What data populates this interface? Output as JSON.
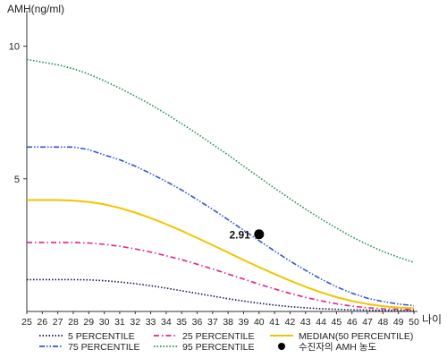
{
  "chart_data": {
    "type": "line",
    "ylabel": "AMH(ng/ml)",
    "xlabel": "나이",
    "x": [
      25,
      26,
      27,
      28,
      29,
      30,
      31,
      32,
      33,
      34,
      35,
      36,
      37,
      38,
      39,
      40,
      41,
      42,
      43,
      44,
      45,
      46,
      47,
      48,
      49,
      50
    ],
    "xlim": [
      25,
      50
    ],
    "ylim": [
      0,
      11
    ],
    "yticks": [
      5,
      10
    ],
    "grid": false,
    "legend_position": "bottom",
    "series": [
      {
        "name": "5 PERCENTILE",
        "color": "#0b1a4a",
        "dash": "dotted",
        "values": [
          1.2,
          1.2,
          1.2,
          1.2,
          1.19,
          1.16,
          1.11,
          1.05,
          0.97,
          0.88,
          0.78,
          0.68,
          0.58,
          0.48,
          0.39,
          0.31,
          0.24,
          0.18,
          0.14,
          0.1,
          0.08,
          0.06,
          0.05,
          0.04,
          0.03,
          0.03
        ]
      },
      {
        "name": "25 PERCENTILE",
        "color": "#e0218a",
        "dash": "dashdot",
        "values": [
          2.6,
          2.6,
          2.6,
          2.6,
          2.58,
          2.53,
          2.46,
          2.36,
          2.24,
          2.1,
          1.95,
          1.78,
          1.6,
          1.41,
          1.22,
          1.03,
          0.85,
          0.68,
          0.53,
          0.4,
          0.29,
          0.2,
          0.14,
          0.1,
          0.08,
          0.07
        ]
      },
      {
        "name": "MEDIAN(50 PERCENTILE)",
        "color": "#f2c400",
        "dash": "solid",
        "values": [
          4.2,
          4.2,
          4.2,
          4.18,
          4.13,
          4.04,
          3.9,
          3.73,
          3.52,
          3.29,
          3.04,
          2.77,
          2.5,
          2.22,
          1.94,
          1.67,
          1.41,
          1.16,
          0.93,
          0.72,
          0.54,
          0.39,
          0.28,
          0.2,
          0.15,
          0.12
        ]
      },
      {
        "name": "75 PERCENTILE",
        "color": "#3355cc",
        "dash": "dashdotdot",
        "values": [
          6.2,
          6.2,
          6.2,
          6.2,
          6.1,
          5.9,
          5.72,
          5.48,
          5.2,
          4.9,
          4.58,
          4.22,
          3.85,
          3.46,
          3.06,
          2.67,
          2.28,
          1.9,
          1.55,
          1.22,
          0.93,
          0.69,
          0.5,
          0.37,
          0.28,
          0.22
        ]
      },
      {
        "name": "95 PERCENTILE",
        "color": "#1f8a4c",
        "dash": "dotted",
        "values": [
          9.5,
          9.4,
          9.3,
          9.15,
          8.95,
          8.7,
          8.42,
          8.12,
          7.8,
          7.45,
          7.08,
          6.7,
          6.3,
          5.9,
          5.48,
          5.06,
          4.65,
          4.25,
          3.86,
          3.49,
          3.14,
          2.81,
          2.52,
          2.26,
          2.04,
          1.85
        ]
      }
    ],
    "points": [
      {
        "name": "수진자의 AMH 농도",
        "x": 40,
        "y": 2.91,
        "label": "2.91",
        "color": "#000000"
      }
    ],
    "legend_order": [
      "5 PERCENTILE",
      "25 PERCENTILE",
      "MEDIAN(50 PERCENTILE)",
      "75 PERCENTILE",
      "95 PERCENTILE",
      "수진자의 AMH 농도"
    ]
  }
}
